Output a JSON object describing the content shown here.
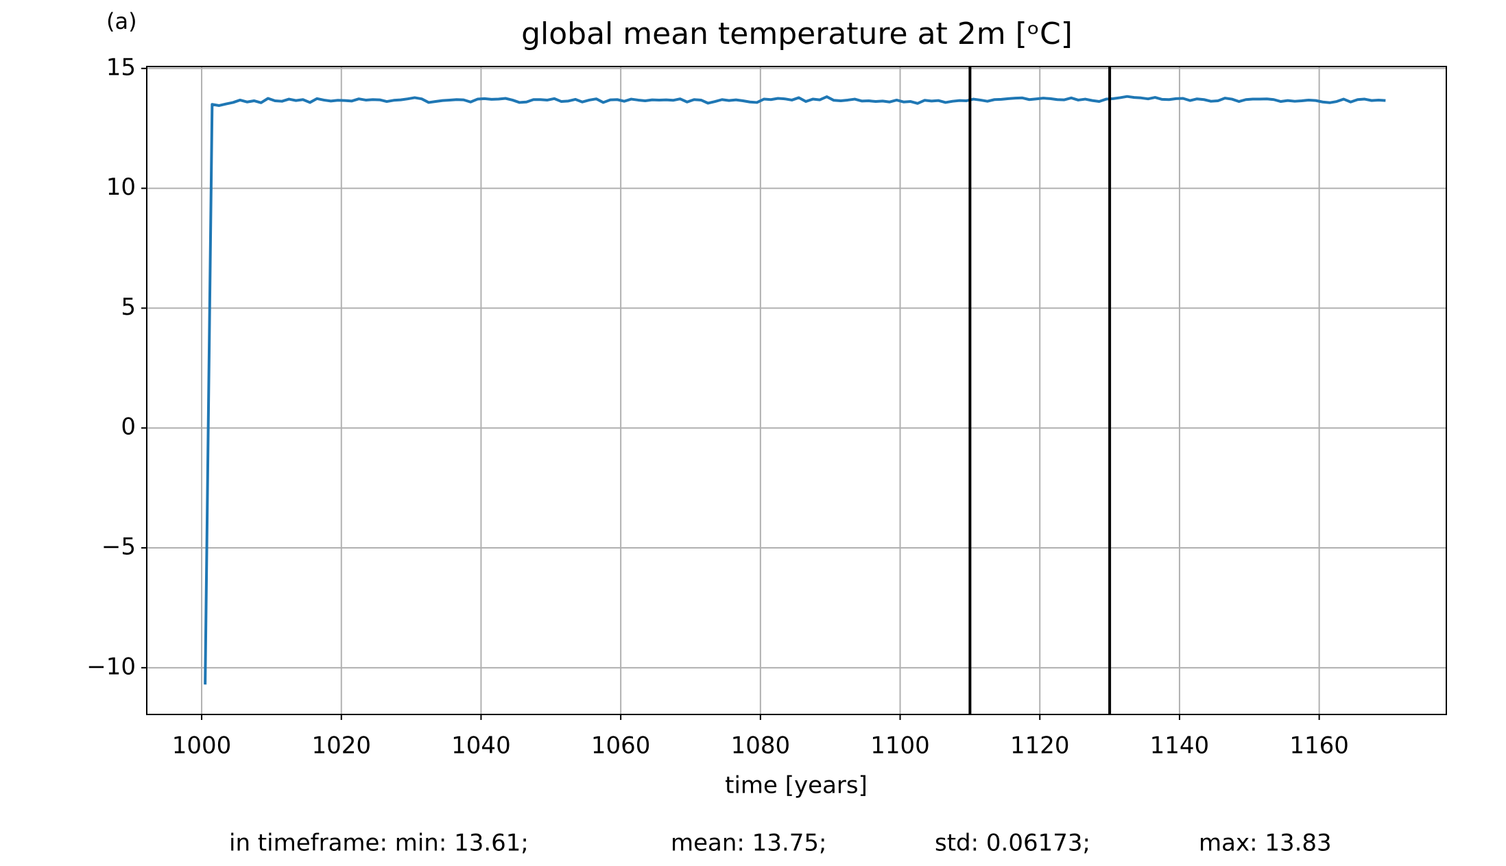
{
  "chart_data": {
    "type": "line",
    "panel_label": "(a)",
    "title": "global mean temperature at 2m [ᵒC]",
    "xlabel": "time [years]",
    "footer": [
      "in timeframe: min: 13.61;",
      "mean: 13.75;",
      "std: 0.06173;",
      "max: 13.83"
    ],
    "x": [
      1000.5,
      1001.5,
      1002.5,
      1003.5,
      1004.5,
      1005.5,
      1006.5,
      1007.5,
      1008.5,
      1009.5,
      1010.5,
      1011.5,
      1012.5,
      1013.5,
      1014.5,
      1015.5,
      1016.5,
      1017.5,
      1018.5,
      1019.5,
      1020.5,
      1021.5,
      1022.5,
      1023.5,
      1024.5,
      1025.5,
      1026.5,
      1027.5,
      1028.5,
      1029.5,
      1030.5,
      1031.5,
      1032.5,
      1033.5,
      1034.5,
      1035.5,
      1036.5,
      1037.5,
      1038.5,
      1039.5,
      1040.5,
      1041.5,
      1042.5,
      1043.5,
      1044.5,
      1045.5,
      1046.5,
      1047.5,
      1048.5,
      1049.5,
      1050.5,
      1051.5,
      1052.5,
      1053.5,
      1054.5,
      1055.5,
      1056.5,
      1057.5,
      1058.5,
      1059.5,
      1060.5,
      1061.5,
      1062.5,
      1063.5,
      1064.5,
      1065.5,
      1066.5,
      1067.5,
      1068.5,
      1069.5,
      1070.5,
      1071.5,
      1072.5,
      1073.5,
      1074.5,
      1075.5,
      1076.5,
      1077.5,
      1078.5,
      1079.5,
      1080.5,
      1081.5,
      1082.5,
      1083.5,
      1084.5,
      1085.5,
      1086.5,
      1087.5,
      1088.5,
      1089.5,
      1090.5,
      1091.5,
      1092.5,
      1093.5,
      1094.5,
      1095.5,
      1096.5,
      1097.5,
      1098.5,
      1099.5,
      1100.5,
      1101.5,
      1102.5,
      1103.5,
      1104.5,
      1105.5,
      1106.5,
      1107.5,
      1108.5,
      1109.5,
      1110.5,
      1111.5,
      1112.5,
      1113.5,
      1114.5,
      1115.5,
      1116.5,
      1117.5,
      1118.5,
      1119.5,
      1120.5,
      1121.5,
      1122.5,
      1123.5,
      1124.5,
      1125.5,
      1126.5,
      1127.5,
      1128.5,
      1129.5,
      1130.5,
      1131.5,
      1132.5,
      1133.5,
      1134.5,
      1135.5,
      1136.5,
      1137.5,
      1138.5,
      1139.5,
      1140.5,
      1141.5,
      1142.5,
      1143.5,
      1144.5,
      1145.5,
      1146.5,
      1147.5,
      1148.5,
      1149.5,
      1150.5,
      1151.5,
      1152.5,
      1153.5,
      1154.5,
      1155.5,
      1156.5,
      1157.5,
      1158.5,
      1159.5,
      1160.5,
      1161.5,
      1162.5,
      1163.5,
      1164.5,
      1165.5,
      1166.5,
      1167.5,
      1168.5,
      1169.5
    ],
    "series": [
      {
        "color": "#1f77b4",
        "values": [
          -10.7,
          13.5,
          13.45,
          13.52,
          13.58,
          13.68,
          13.6,
          13.65,
          13.57,
          13.75,
          13.65,
          13.63,
          13.72,
          13.66,
          13.7,
          13.58,
          13.74,
          13.68,
          13.64,
          13.67,
          13.66,
          13.64,
          13.73,
          13.68,
          13.7,
          13.69,
          13.62,
          13.67,
          13.69,
          13.73,
          13.78,
          13.73,
          13.58,
          13.62,
          13.66,
          13.68,
          13.7,
          13.69,
          13.6,
          13.72,
          13.74,
          13.71,
          13.72,
          13.75,
          13.68,
          13.58,
          13.6,
          13.7,
          13.7,
          13.68,
          13.74,
          13.62,
          13.64,
          13.71,
          13.6,
          13.68,
          13.73,
          13.58,
          13.69,
          13.7,
          13.63,
          13.72,
          13.68,
          13.65,
          13.69,
          13.68,
          13.69,
          13.67,
          13.73,
          13.6,
          13.7,
          13.68,
          13.55,
          13.62,
          13.7,
          13.66,
          13.69,
          13.65,
          13.6,
          13.58,
          13.72,
          13.7,
          13.75,
          13.73,
          13.68,
          13.78,
          13.62,
          13.72,
          13.69,
          13.82,
          13.67,
          13.65,
          13.68,
          13.72,
          13.64,
          13.65,
          13.62,
          13.64,
          13.6,
          13.68,
          13.6,
          13.62,
          13.54,
          13.67,
          13.64,
          13.66,
          13.58,
          13.63,
          13.66,
          13.65,
          13.72,
          13.68,
          13.63,
          13.7,
          13.71,
          13.74,
          13.76,
          13.77,
          13.7,
          13.73,
          13.76,
          13.74,
          13.7,
          13.69,
          13.77,
          13.68,
          13.72,
          13.66,
          13.62,
          13.72,
          13.74,
          13.78,
          13.83,
          13.79,
          13.77,
          13.73,
          13.79,
          13.71,
          13.7,
          13.74,
          13.75,
          13.66,
          13.73,
          13.7,
          13.63,
          13.65,
          13.76,
          13.72,
          13.62,
          13.7,
          13.72,
          13.72,
          13.73,
          13.7,
          13.62,
          13.66,
          13.63,
          13.65,
          13.68,
          13.66,
          13.6,
          13.57,
          13.62,
          13.72,
          13.6,
          13.7,
          13.72,
          13.66,
          13.68,
          13.66
        ]
      }
    ],
    "vlines": [
      1110,
      1130
    ],
    "vline_color": "#000000",
    "xlim": [
      992.14,
      1178.2
    ],
    "xticks": [
      1000,
      1020,
      1040,
      1060,
      1080,
      1100,
      1120,
      1140,
      1160
    ],
    "ylim": [
      -11.95,
      15.08
    ],
    "yticks": [
      {
        "value": -10,
        "label": "−10"
      },
      {
        "value": -5,
        "label": "−5"
      },
      0,
      5,
      10,
      15
    ],
    "grid": true
  }
}
